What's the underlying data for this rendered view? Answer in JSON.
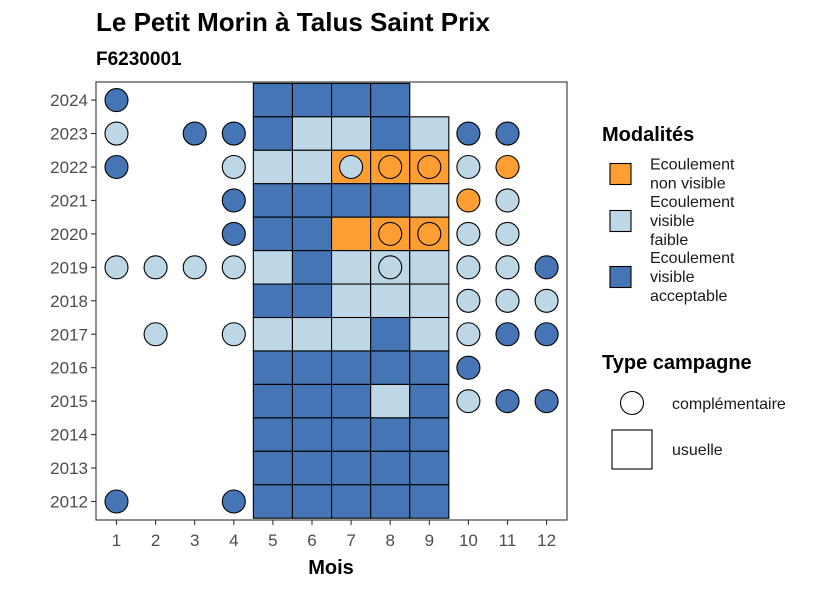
{
  "chart_data": {
    "type": "heatmap",
    "title": "Le Petit Morin à Talus Saint Prix",
    "subtitle": "F6230001",
    "xlabel": "Mois",
    "ylabel": "",
    "x_categories": [
      "1",
      "2",
      "3",
      "4",
      "5",
      "6",
      "7",
      "8",
      "9",
      "10",
      "11",
      "12"
    ],
    "y_categories": [
      "2012",
      "2013",
      "2014",
      "2015",
      "2016",
      "2017",
      "2018",
      "2019",
      "2020",
      "2021",
      "2022",
      "2023",
      "2024"
    ],
    "colors": {
      "non_visible": "#FF9F33",
      "faible": "#BDD7E7",
      "acceptable": "#4575B4"
    },
    "legend_modalites": {
      "title": "Modalités",
      "entries": [
        {
          "key": "non_visible",
          "lines": [
            "Ecoulement",
            "non visible"
          ]
        },
        {
          "key": "faible",
          "lines": [
            "Ecoulement",
            "visible",
            "faible"
          ]
        },
        {
          "key": "acceptable",
          "lines": [
            "Ecoulement",
            "visible",
            "acceptable"
          ]
        }
      ]
    },
    "legend_type": {
      "title": "Type campagne",
      "entries": [
        {
          "shape": "circle",
          "label": "complémentaire"
        },
        {
          "shape": "square",
          "label": "usuelle"
        }
      ]
    },
    "legend_position": "right",
    "usuelle": [
      {
        "year": "2024",
        "month": 5,
        "value": "acceptable"
      },
      {
        "year": "2024",
        "month": 6,
        "value": "acceptable"
      },
      {
        "year": "2024",
        "month": 7,
        "value": "acceptable"
      },
      {
        "year": "2024",
        "month": 8,
        "value": "acceptable"
      },
      {
        "year": "2023",
        "month": 5,
        "value": "acceptable"
      },
      {
        "year": "2023",
        "month": 6,
        "value": "faible"
      },
      {
        "year": "2023",
        "month": 7,
        "value": "faible"
      },
      {
        "year": "2023",
        "month": 8,
        "value": "acceptable"
      },
      {
        "year": "2023",
        "month": 9,
        "value": "faible"
      },
      {
        "year": "2022",
        "month": 5,
        "value": "faible"
      },
      {
        "year": "2022",
        "month": 6,
        "value": "faible"
      },
      {
        "year": "2022",
        "month": 7,
        "value": "non_visible"
      },
      {
        "year": "2022",
        "month": 8,
        "value": "non_visible"
      },
      {
        "year": "2022",
        "month": 9,
        "value": "non_visible"
      },
      {
        "year": "2021",
        "month": 5,
        "value": "acceptable"
      },
      {
        "year": "2021",
        "month": 6,
        "value": "acceptable"
      },
      {
        "year": "2021",
        "month": 7,
        "value": "acceptable"
      },
      {
        "year": "2021",
        "month": 8,
        "value": "acceptable"
      },
      {
        "year": "2021",
        "month": 9,
        "value": "faible"
      },
      {
        "year": "2020",
        "month": 5,
        "value": "acceptable"
      },
      {
        "year": "2020",
        "month": 6,
        "value": "acceptable"
      },
      {
        "year": "2020",
        "month": 7,
        "value": "non_visible"
      },
      {
        "year": "2020",
        "month": 8,
        "value": "non_visible"
      },
      {
        "year": "2020",
        "month": 9,
        "value": "non_visible"
      },
      {
        "year": "2019",
        "month": 5,
        "value": "faible"
      },
      {
        "year": "2019",
        "month": 6,
        "value": "acceptable"
      },
      {
        "year": "2019",
        "month": 7,
        "value": "faible"
      },
      {
        "year": "2019",
        "month": 8,
        "value": "faible"
      },
      {
        "year": "2019",
        "month": 9,
        "value": "faible"
      },
      {
        "year": "2018",
        "month": 5,
        "value": "acceptable"
      },
      {
        "year": "2018",
        "month": 6,
        "value": "acceptable"
      },
      {
        "year": "2018",
        "month": 7,
        "value": "faible"
      },
      {
        "year": "2018",
        "month": 8,
        "value": "faible"
      },
      {
        "year": "2018",
        "month": 9,
        "value": "faible"
      },
      {
        "year": "2017",
        "month": 5,
        "value": "faible"
      },
      {
        "year": "2017",
        "month": 6,
        "value": "faible"
      },
      {
        "year": "2017",
        "month": 7,
        "value": "faible"
      },
      {
        "year": "2017",
        "month": 8,
        "value": "acceptable"
      },
      {
        "year": "2017",
        "month": 9,
        "value": "faible"
      },
      {
        "year": "2016",
        "month": 5,
        "value": "acceptable"
      },
      {
        "year": "2016",
        "month": 6,
        "value": "acceptable"
      },
      {
        "year": "2016",
        "month": 7,
        "value": "acceptable"
      },
      {
        "year": "2016",
        "month": 8,
        "value": "acceptable"
      },
      {
        "year": "2016",
        "month": 9,
        "value": "acceptable"
      },
      {
        "year": "2015",
        "month": 5,
        "value": "acceptable"
      },
      {
        "year": "2015",
        "month": 6,
        "value": "acceptable"
      },
      {
        "year": "2015",
        "month": 7,
        "value": "acceptable"
      },
      {
        "year": "2015",
        "month": 8,
        "value": "faible"
      },
      {
        "year": "2015",
        "month": 9,
        "value": "acceptable"
      },
      {
        "year": "2014",
        "month": 5,
        "value": "acceptable"
      },
      {
        "year": "2014",
        "month": 6,
        "value": "acceptable"
      },
      {
        "year": "2014",
        "month": 7,
        "value": "acceptable"
      },
      {
        "year": "2014",
        "month": 8,
        "value": "acceptable"
      },
      {
        "year": "2014",
        "month": 9,
        "value": "acceptable"
      },
      {
        "year": "2013",
        "month": 5,
        "value": "acceptable"
      },
      {
        "year": "2013",
        "month": 6,
        "value": "acceptable"
      },
      {
        "year": "2013",
        "month": 7,
        "value": "acceptable"
      },
      {
        "year": "2013",
        "month": 8,
        "value": "acceptable"
      },
      {
        "year": "2013",
        "month": 9,
        "value": "acceptable"
      },
      {
        "year": "2012",
        "month": 5,
        "value": "acceptable"
      },
      {
        "year": "2012",
        "month": 6,
        "value": "acceptable"
      },
      {
        "year": "2012",
        "month": 7,
        "value": "acceptable"
      },
      {
        "year": "2012",
        "month": 8,
        "value": "acceptable"
      },
      {
        "year": "2012",
        "month": 9,
        "value": "acceptable"
      }
    ],
    "complementaire": [
      {
        "year": "2024",
        "month": 1,
        "value": "acceptable"
      },
      {
        "year": "2023",
        "month": 1,
        "value": "faible"
      },
      {
        "year": "2023",
        "month": 3,
        "value": "acceptable"
      },
      {
        "year": "2023",
        "month": 4,
        "value": "acceptable"
      },
      {
        "year": "2023",
        "month": 10,
        "value": "acceptable"
      },
      {
        "year": "2023",
        "month": 11,
        "value": "acceptable"
      },
      {
        "year": "2022",
        "month": 1,
        "value": "acceptable"
      },
      {
        "year": "2022",
        "month": 4,
        "value": "faible"
      },
      {
        "year": "2022",
        "month": 7,
        "value": "faible"
      },
      {
        "year": "2022",
        "month": 8,
        "value": "non_visible"
      },
      {
        "year": "2022",
        "month": 9,
        "value": "non_visible"
      },
      {
        "year": "2022",
        "month": 10,
        "value": "faible"
      },
      {
        "year": "2022",
        "month": 11,
        "value": "non_visible"
      },
      {
        "year": "2021",
        "month": 4,
        "value": "acceptable"
      },
      {
        "year": "2021",
        "month": 10,
        "value": "non_visible"
      },
      {
        "year": "2021",
        "month": 11,
        "value": "faible"
      },
      {
        "year": "2020",
        "month": 4,
        "value": "acceptable"
      },
      {
        "year": "2020",
        "month": 8,
        "value": "non_visible"
      },
      {
        "year": "2020",
        "month": 9,
        "value": "non_visible"
      },
      {
        "year": "2020",
        "month": 10,
        "value": "faible"
      },
      {
        "year": "2020",
        "month": 11,
        "value": "faible"
      },
      {
        "year": "2019",
        "month": 1,
        "value": "faible"
      },
      {
        "year": "2019",
        "month": 2,
        "value": "faible"
      },
      {
        "year": "2019",
        "month": 3,
        "value": "faible"
      },
      {
        "year": "2019",
        "month": 4,
        "value": "faible"
      },
      {
        "year": "2019",
        "month": 8,
        "value": "faible"
      },
      {
        "year": "2019",
        "month": 10,
        "value": "faible"
      },
      {
        "year": "2019",
        "month": 11,
        "value": "faible"
      },
      {
        "year": "2019",
        "month": 12,
        "value": "acceptable"
      },
      {
        "year": "2018",
        "month": 10,
        "value": "faible"
      },
      {
        "year": "2018",
        "month": 11,
        "value": "faible"
      },
      {
        "year": "2018",
        "month": 12,
        "value": "faible"
      },
      {
        "year": "2017",
        "month": 2,
        "value": "faible"
      },
      {
        "year": "2017",
        "month": 4,
        "value": "faible"
      },
      {
        "year": "2017",
        "month": 10,
        "value": "faible"
      },
      {
        "year": "2017",
        "month": 11,
        "value": "acceptable"
      },
      {
        "year": "2017",
        "month": 12,
        "value": "acceptable"
      },
      {
        "year": "2016",
        "month": 10,
        "value": "acceptable"
      },
      {
        "year": "2015",
        "month": 10,
        "value": "faible"
      },
      {
        "year": "2015",
        "month": 11,
        "value": "acceptable"
      },
      {
        "year": "2015",
        "month": 12,
        "value": "acceptable"
      },
      {
        "year": "2012",
        "month": 1,
        "value": "acceptable"
      },
      {
        "year": "2012",
        "month": 4,
        "value": "acceptable"
      }
    ]
  }
}
